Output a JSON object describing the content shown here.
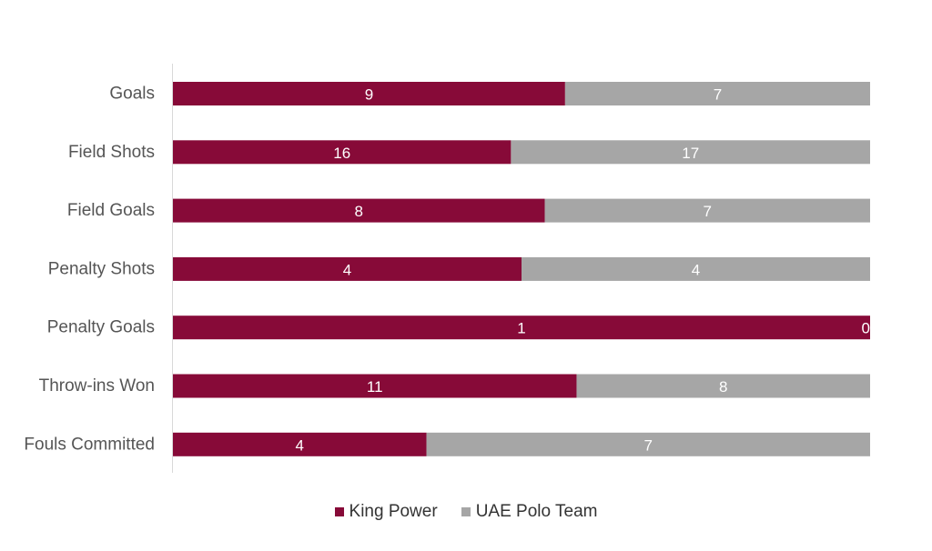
{
  "chart_data": {
    "type": "bar",
    "orientation": "horizontal",
    "stacked": "100%",
    "categories": [
      "Goals",
      "Field Shots",
      "Field Goals",
      "Penalty Shots",
      "Penalty Goals",
      "Throw-ins Won",
      "Fouls Committed"
    ],
    "series": [
      {
        "name": "King Power",
        "values": [
          9,
          16,
          8,
          4,
          1,
          11,
          4
        ],
        "color": "#870a38"
      },
      {
        "name": "UAE Polo Team",
        "values": [
          7,
          17,
          7,
          4,
          0,
          8,
          7
        ],
        "color": "#a6a6a6"
      }
    ],
    "title": "",
    "xlabel": "",
    "ylabel": "",
    "legend_position": "bottom",
    "grid": false
  }
}
